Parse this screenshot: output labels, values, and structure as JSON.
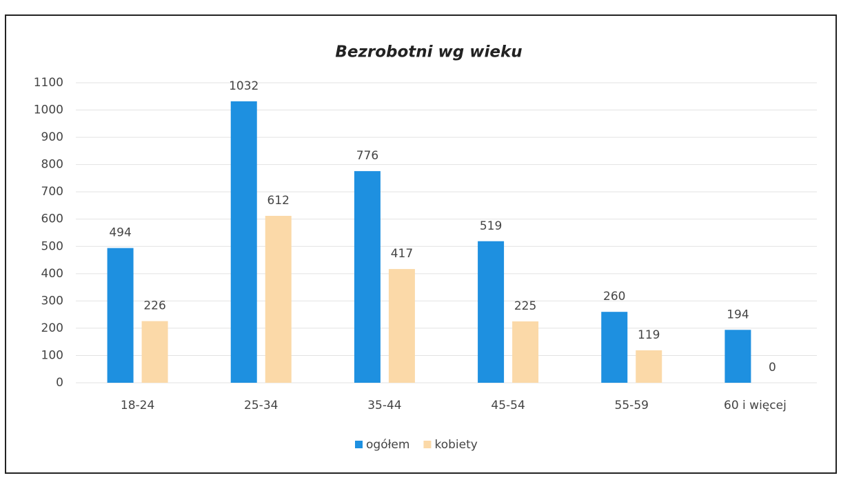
{
  "chart_data": {
    "type": "bar",
    "title": "Bezrobotni wg wieku",
    "categories": [
      "18-24",
      "25-34",
      "35-44",
      "45-54",
      "55-59",
      "60 i więcej"
    ],
    "series": [
      {
        "name": "ogółem",
        "color": "#1e90e0",
        "values": [
          494,
          1032,
          776,
          519,
          260,
          194
        ]
      },
      {
        "name": "kobiety",
        "color": "#fbd9a8",
        "values": [
          226,
          612,
          417,
          225,
          119,
          0
        ]
      }
    ],
    "ylim": [
      0,
      1100
    ],
    "yticks": [
      0,
      100,
      200,
      300,
      400,
      500,
      600,
      700,
      800,
      900,
      1000,
      1100
    ],
    "grid": true,
    "legend": "bottom"
  }
}
